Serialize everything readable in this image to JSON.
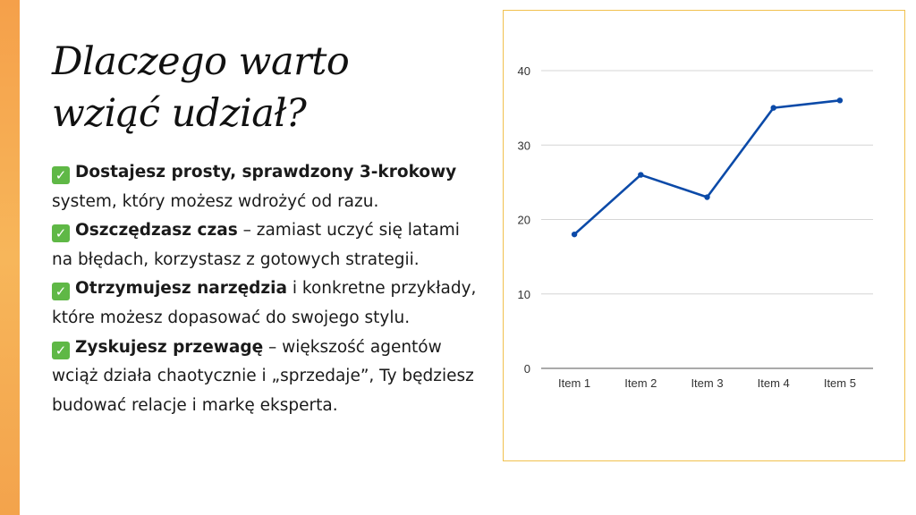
{
  "title": {
    "line1": "Dlaczego warto",
    "line2": "wziąć udział?"
  },
  "bullets": [
    {
      "icon": "check-icon",
      "bold": "Dostajesz prosty, sprawdzony 3-krokowy",
      "rest": " system, który możesz wdrożyć od razu."
    },
    {
      "icon": "check-icon",
      "bold": "Oszczędzasz czas",
      "rest": " – zamiast uczyć się latami na błędach, korzystasz z gotowych strategii."
    },
    {
      "icon": "check-icon",
      "bold": "Otrzymujesz narzędzia",
      "rest": " i konkretne przykłady, które możesz dopasować do swojego stylu."
    },
    {
      "icon": "check-icon",
      "bold": "Zyskujesz przewagę",
      "rest": " – większość agentów wciąż działa chaotycznie i „sprzedaje”, Ty będziesz budować relacje i markę eksperta."
    }
  ],
  "colors": {
    "accent": "#f5a04a",
    "line": "#0b4aa8",
    "check": "#5fb846",
    "frame": "#f1c14e"
  },
  "chart_data": {
    "type": "line",
    "categories": [
      "Item 1",
      "Item 2",
      "Item 3",
      "Item 4",
      "Item 5"
    ],
    "series": [
      {
        "values": [
          18,
          26,
          23,
          35,
          36
        ]
      }
    ],
    "ylim": [
      0,
      40
    ],
    "yticks": [
      0,
      10,
      20,
      30,
      40
    ],
    "grid": true,
    "legend": "none"
  }
}
